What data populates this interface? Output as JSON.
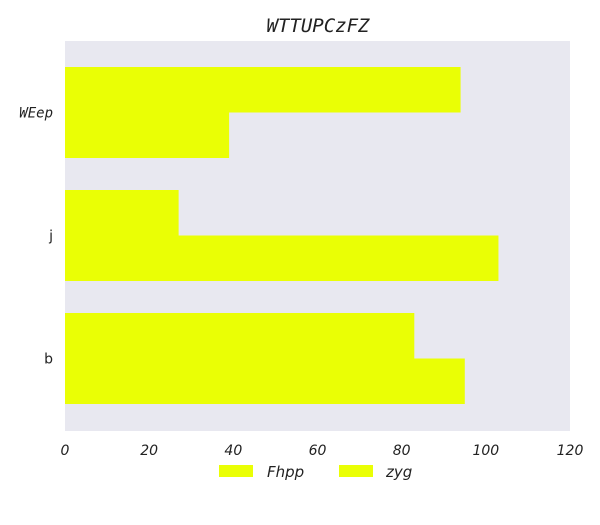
{
  "chart_data": {
    "type": "bar",
    "orientation": "horizontal",
    "title": "WTTUPCzFZ",
    "xlabel": "",
    "ylabel": "",
    "categories": [
      "WEep",
      "j",
      "b"
    ],
    "series": [
      {
        "name": "Fhpp",
        "values": [
          94,
          27,
          83
        ]
      },
      {
        "name": "zyg",
        "values": [
          39,
          103,
          95
        ]
      }
    ],
    "xlim": [
      0,
      120
    ],
    "xticks": [
      "0",
      "20",
      "40",
      "60",
      "80",
      "100",
      "120"
    ],
    "grid": false,
    "legend_position": "bottom-center",
    "colors": {
      "bar": "#eaff05",
      "plot_background": "#e8e8f0"
    }
  }
}
